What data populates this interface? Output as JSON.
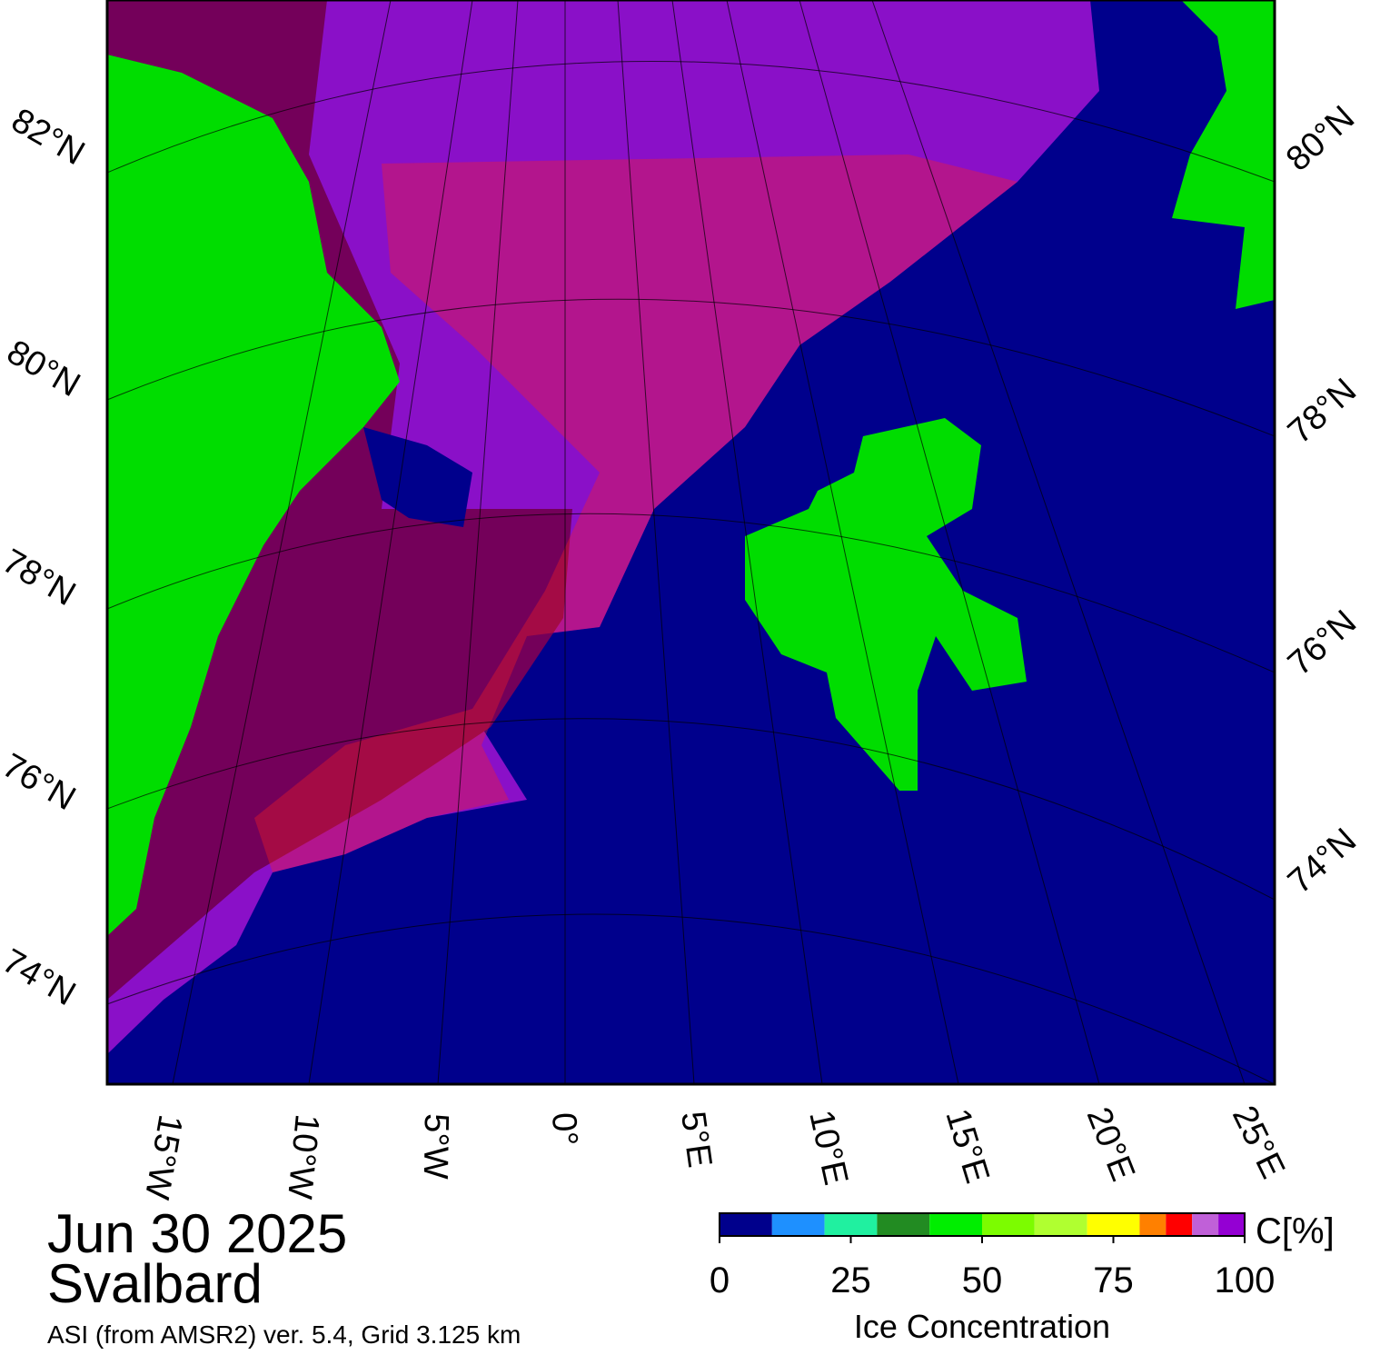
{
  "header": {
    "date": "Jun 30 2025",
    "region": "Svalbard",
    "source": "ASI (from AMSR2) ver. 5.4,  Grid 3.125 km"
  },
  "map": {
    "lat_labels_left": [
      "82°N",
      "80°N",
      "78°N",
      "76°N",
      "74°N"
    ],
    "lat_labels_right": [
      "80°N",
      "78°N",
      "76°N",
      "74°N"
    ],
    "lon_labels": [
      "15°W",
      "10°W",
      "5°W",
      "0°",
      "5°E",
      "10°E",
      "15°E",
      "20°E",
      "25°E"
    ]
  },
  "colorbar": {
    "label": "Ice Concentration",
    "unit": "C[%]",
    "lim": [
      0,
      100
    ],
    "ticks": [
      0,
      25,
      50,
      75,
      100
    ],
    "bins": [
      0,
      10,
      20,
      30,
      40,
      50,
      60,
      70,
      80,
      85,
      90,
      95,
      100
    ],
    "colors": [
      "#00008c",
      "#1e90ff",
      "#20f0a0",
      "#228b22",
      "#00ee00",
      "#7cfc00",
      "#b0ff30",
      "#ffff00",
      "#ff8000",
      "#ff0000",
      "#c060d8",
      "#9400d3"
    ]
  }
}
